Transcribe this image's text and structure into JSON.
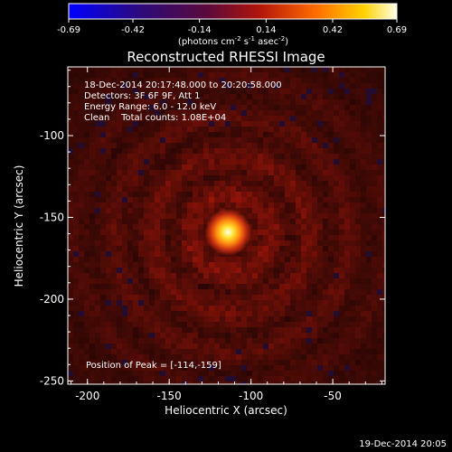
{
  "colorbar": {
    "ticks": [
      "-0.69",
      "-0.42",
      "-0.14",
      "0.14",
      "0.42",
      "0.69"
    ],
    "min": -0.69,
    "max": 0.69,
    "units_main": "(photons cm",
    "units_exp1": "-2",
    "units_mid1": " s",
    "units_exp2": "-1",
    "units_mid2": " asec",
    "units_exp3": "-2",
    "units_end": ")"
  },
  "chart_data": {
    "type": "heatmap",
    "title": "Reconstructed RHESSI Image",
    "xlabel": "Heliocentric X (arcsec)",
    "ylabel": "Heliocentric Y (arcsec)",
    "xlim": [
      -212,
      -18
    ],
    "ylim": [
      -252,
      -58
    ],
    "x_ticks": [
      "-200",
      "-150",
      "-100",
      "-50"
    ],
    "x_tick_values": [
      -200,
      -150,
      -100,
      -50
    ],
    "y_ticks": [
      "-250",
      "-200",
      "-150",
      "-100"
    ],
    "y_tick_values": [
      -250,
      -200,
      -150,
      -100
    ],
    "info_lines": [
      "18-Dec-2014 20:17:48.000 to 20:20:58.000",
      "Detectors: 3F 6F 9F, Att 1",
      "Energy Range: 6.0 - 12.0 keV",
      "Clean    Total counts: 1.08E+04"
    ],
    "peak_text": "Position of Peak = [-114,-159]",
    "peak": {
      "x": -114,
      "y": -159
    },
    "peak_value": 0.69
  },
  "footer": {
    "timestamp": "19-Dec-2014 20:05"
  }
}
